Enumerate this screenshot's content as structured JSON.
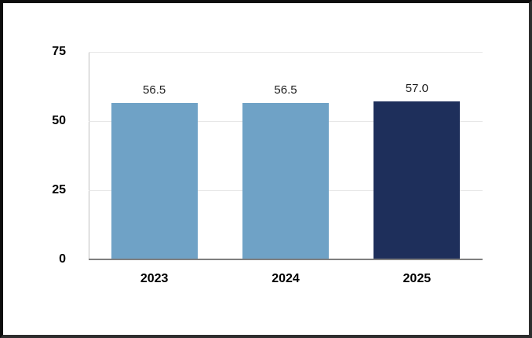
{
  "chart_data": {
    "type": "bar",
    "categories": [
      "2023",
      "2024",
      "2025"
    ],
    "values": [
      56.5,
      56.5,
      57.0
    ],
    "value_labels": [
      "56.5",
      "56.5",
      "57.0"
    ],
    "title": "",
    "xlabel": "",
    "ylabel": "",
    "ylim": [
      0,
      75
    ],
    "yticks": [
      0,
      25,
      50,
      75
    ],
    "grid": "horizontal",
    "legend": "none",
    "bar_colors": [
      "#6FA2C6",
      "#6FA2C6",
      "#1E2F5B"
    ],
    "gridline_color": "#e7e7e7",
    "axis_line_color": "#bfbfbf",
    "baseline_color": "#7f7f7f",
    "frame_border_color": "#0d0d0d",
    "value_label_color": "#1f1f1f",
    "tick_label_color": "#000000"
  }
}
